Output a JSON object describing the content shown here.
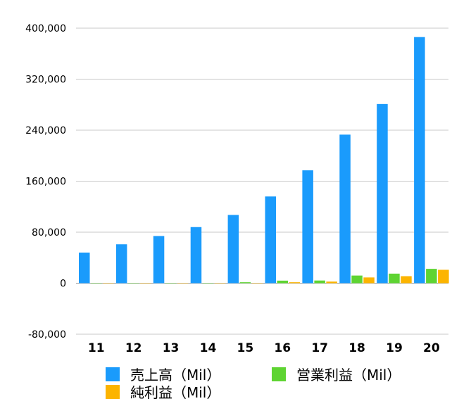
{
  "chart_data": {
    "type": "bar",
    "title": "",
    "xlabel": "",
    "ylabel": "",
    "categories": [
      "11",
      "12",
      "13",
      "14",
      "15",
      "16",
      "17",
      "18",
      "19",
      "20"
    ],
    "ylim": [
      -80000,
      400000
    ],
    "yticks": [
      -80000,
      0,
      80000,
      160000,
      240000,
      320000,
      400000
    ],
    "ytick_labels": [
      "-80,000",
      "0",
      "80,000",
      "160,000",
      "240,000",
      "320,000",
      "400,000"
    ],
    "grid": true,
    "legend_position": "bottom",
    "series": [
      {
        "name": "売上高（Mil）",
        "color": "#1a9bfc",
        "values": [
          48000,
          61000,
          74000,
          88000,
          107000,
          136000,
          177000,
          233000,
          281000,
          386000
        ]
      },
      {
        "name": "営業利益（Mil）",
        "color": "#5ed432",
        "values": [
          200,
          300,
          400,
          500,
          1500,
          4000,
          4200,
          12000,
          15000,
          22500
        ]
      },
      {
        "name": "純利益（Mil）",
        "color": "#fcb400",
        "values": [
          100,
          100,
          200,
          200,
          300,
          1500,
          2500,
          9000,
          11000,
          21000
        ]
      }
    ]
  }
}
